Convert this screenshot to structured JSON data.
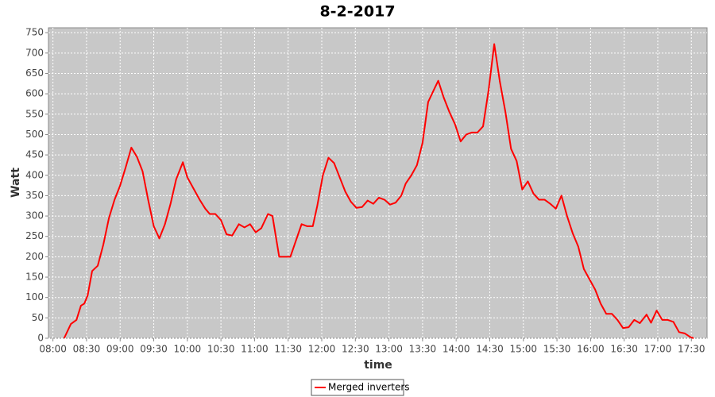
{
  "chart_data": {
    "type": "line",
    "title": "8-2-2017",
    "x_label": "time",
    "y_label": "Watt",
    "x": [
      "08:10",
      "08:16",
      "08:21",
      "08:25",
      "08:28",
      "08:31",
      "08:35",
      "08:40",
      "08:45",
      "08:50",
      "08:55",
      "09:00",
      "09:05",
      "09:10",
      "09:15",
      "09:20",
      "09:25",
      "09:30",
      "09:35",
      "09:40",
      "09:45",
      "09:50",
      "09:56",
      "10:00",
      "10:06",
      "10:11",
      "10:16",
      "10:20",
      "10:25",
      "10:30",
      "10:35",
      "10:40",
      "10:46",
      "10:51",
      "10:56",
      "11:01",
      "11:06",
      "11:12",
      "11:16",
      "11:22",
      "11:27",
      "11:32",
      "11:37",
      "11:42",
      "11:47",
      "11:52",
      "11:56",
      "12:01",
      "12:06",
      "12:11",
      "12:16",
      "12:21",
      "12:26",
      "12:31",
      "12:36",
      "12:41",
      "12:46",
      "12:51",
      "12:56",
      "13:01",
      "13:06",
      "13:11",
      "13:15",
      "13:20",
      "13:25",
      "13:30",
      "13:35",
      "13:41",
      "13:44",
      "13:49",
      "13:54",
      "13:59",
      "14:04",
      "14:09",
      "14:14",
      "14:19",
      "14:24",
      "14:29",
      "14:34",
      "14:39",
      "14:44",
      "14:49",
      "14:54",
      "14:59",
      "15:04",
      "15:09",
      "15:14",
      "15:19",
      "15:24",
      "15:29",
      "15:34",
      "15:39",
      "15:44",
      "15:49",
      "15:54",
      "15:59",
      "16:04",
      "16:09",
      "16:14",
      "16:19",
      "16:24",
      "16:29",
      "16:34",
      "16:39",
      "16:44",
      "16:50",
      "16:54",
      "16:59",
      "17:04",
      "17:09",
      "17:14",
      "17:19",
      "17:24",
      "17:29",
      "17:32"
    ],
    "series": [
      {
        "name": "Merged inverters",
        "color": "#ff0000",
        "values": [
          0,
          35,
          45,
          80,
          85,
          105,
          165,
          178,
          230,
          295,
          340,
          375,
          420,
          468,
          445,
          410,
          340,
          275,
          245,
          280,
          330,
          390,
          432,
          395,
          365,
          340,
          318,
          305,
          305,
          290,
          255,
          252,
          280,
          272,
          280,
          260,
          270,
          305,
          300,
          200,
          200,
          200,
          240,
          280,
          275,
          275,
          325,
          400,
          443,
          430,
          395,
          360,
          335,
          320,
          322,
          338,
          330,
          345,
          340,
          328,
          333,
          350,
          380,
          400,
          425,
          480,
          580,
          615,
          632,
          590,
          555,
          525,
          483,
          500,
          505,
          505,
          520,
          610,
          722,
          630,
          555,
          465,
          435,
          365,
          385,
          355,
          340,
          340,
          330,
          318,
          350,
          300,
          258,
          225,
          170,
          145,
          120,
          85,
          60,
          60,
          45,
          25,
          27,
          45,
          37,
          58,
          38,
          68,
          45,
          45,
          40,
          15,
          12,
          3,
          0
        ]
      }
    ],
    "xlim": [
      "07:56",
      "17:44"
    ],
    "xticks": [
      "08:00",
      "08:30",
      "09:00",
      "09:30",
      "10:00",
      "10:30",
      "11:00",
      "11:30",
      "12:00",
      "12:30",
      "13:00",
      "13:30",
      "14:00",
      "14:30",
      "15:00",
      "15:30",
      "16:00",
      "16:30",
      "17:00",
      "17:30"
    ],
    "ylim": [
      0,
      762
    ],
    "yticks": [
      0,
      50,
      100,
      150,
      200,
      250,
      300,
      350,
      400,
      450,
      500,
      550,
      600,
      650,
      700,
      750
    ],
    "grid": true
  }
}
